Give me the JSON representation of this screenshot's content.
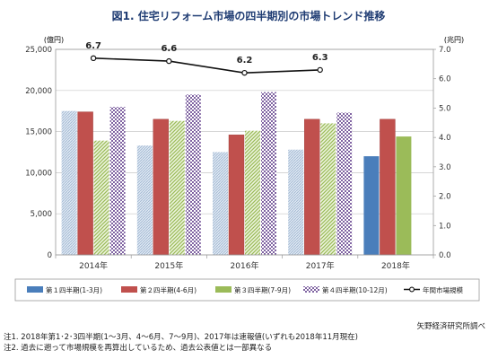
{
  "chart_data": {
    "type": "bar",
    "title": "図1. 住宅リフォーム市場の四半期別の市場トレンド推移",
    "categories": [
      "2014年",
      "2015年",
      "2016年",
      "2017年",
      "2018年"
    ],
    "ylabel": "(億円)",
    "y2label": "(兆円)",
    "ylim": [
      0,
      25000
    ],
    "y2lim": [
      0,
      7.0
    ],
    "yticks": [
      "0",
      "5,000",
      "10,000",
      "15,000",
      "20,000",
      "25,000"
    ],
    "y2ticks": [
      "0.0",
      "1.0",
      "2.0",
      "3.0",
      "4.0",
      "5.0",
      "6.0",
      "7.0"
    ],
    "series": [
      {
        "name": "第１四半期(1-3月)",
        "color": "#4a7ebb",
        "values": [
          17500,
          13300,
          12500,
          12800,
          12000
        ]
      },
      {
        "name": "第２四半期(4-6月)",
        "color": "#c0504d",
        "values": [
          17400,
          16500,
          14600,
          16500,
          16500
        ]
      },
      {
        "name": "第３四半期(7-9月)",
        "color": "#9bbb59",
        "values": [
          13900,
          16300,
          15100,
          16000,
          14400
        ]
      },
      {
        "name": "第４四半期(10-12月)",
        "color": "#8064a2",
        "values": [
          18000,
          19500,
          19800,
          17300,
          null
        ]
      }
    ],
    "line_series": {
      "name": "年間市場規模",
      "values": [
        6.7,
        6.6,
        6.2,
        6.3,
        null
      ],
      "labels": [
        "6.7",
        "6.6",
        "6.2",
        "6.3",
        ""
      ]
    },
    "grid": true,
    "legend": "bottom"
  },
  "source": "矢野経済研究所調べ",
  "notes": [
    "注1. 2018年第1･2･3四半期(1～3月、4～6月、7～9月)、2017年は速報値(いずれも2018年11月現在)",
    "注2. 過去に遡って市場規模を再算出しているため、過去公表値とは一部異なる"
  ]
}
